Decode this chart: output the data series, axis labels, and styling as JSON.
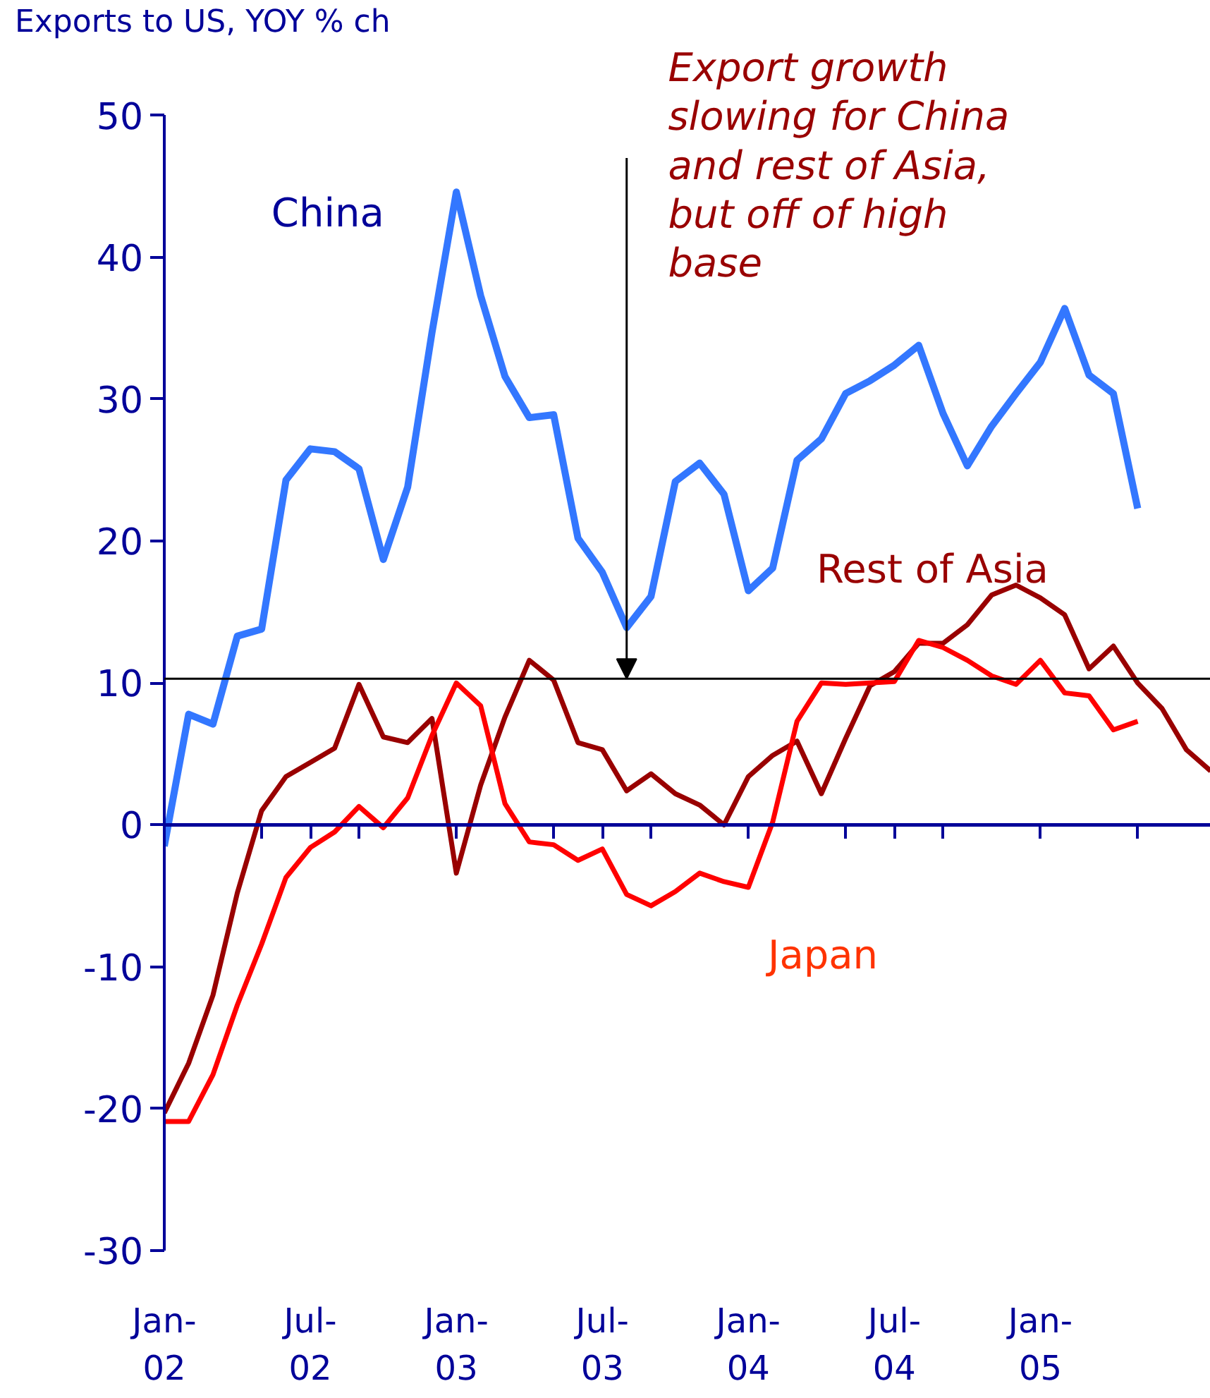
{
  "chart_data": {
    "type": "line",
    "ylabel": "Exports to US, YOY % ch",
    "x": [
      "2002-01",
      "2002-02",
      "2002-03",
      "2002-04",
      "2002-05",
      "2002-06",
      "2002-07",
      "2002-08",
      "2002-09",
      "2002-10",
      "2002-11",
      "2002-12",
      "2003-01",
      "2003-02",
      "2003-03",
      "2003-04",
      "2003-05",
      "2003-06",
      "2003-07",
      "2003-08",
      "2003-09",
      "2003-10",
      "2003-11",
      "2003-12",
      "2004-01",
      "2004-02",
      "2004-03",
      "2004-04",
      "2004-05",
      "2004-06",
      "2004-07",
      "2004-08",
      "2004-09",
      "2004-10",
      "2004-11",
      "2004-12",
      "2005-01",
      "2005-02",
      "2005-03",
      "2005-04",
      "2005-05",
      "2005-06",
      "2005-07",
      "2005-08"
    ],
    "series": [
      {
        "name": "China",
        "color": "#3377ff",
        "values": [
          -1.5,
          7.8,
          7.1,
          13.3,
          13.8,
          24.3,
          26.5,
          26.3,
          25.1,
          18.7,
          23.8,
          34.7,
          44.6,
          37.3,
          31.6,
          28.7,
          28.9,
          20.2,
          17.8,
          13.9,
          16.1,
          24.2,
          25.5,
          23.3,
          16.5,
          18.1,
          25.7,
          27.2,
          30.4,
          31.3,
          32.4,
          33.8,
          29.0,
          25.3,
          28.1,
          30.4,
          32.6,
          36.4,
          31.7,
          30.4,
          22.3,
          null,
          null,
          null
        ]
      },
      {
        "name": "Rest of Asia",
        "color": "#990000",
        "values": [
          -20.3,
          -16.8,
          -12.0,
          -4.8,
          1.0,
          3.4,
          4.4,
          5.4,
          9.9,
          6.2,
          5.8,
          7.5,
          -3.4,
          2.8,
          7.6,
          11.6,
          10.2,
          5.8,
          5.3,
          2.4,
          3.6,
          2.2,
          1.4,
          0.0,
          3.4,
          4.9,
          5.9,
          2.2,
          6.1,
          9.8,
          10.8,
          12.8,
          12.8,
          14.1,
          16.2,
          16.9,
          16.0,
          14.8,
          11.0,
          12.6,
          10.0,
          8.2,
          5.3,
          3.8
        ]
      },
      {
        "name": "Japan",
        "color": "#ff0000",
        "values": [
          -20.9,
          -20.9,
          -17.6,
          -12.7,
          -8.4,
          -3.7,
          -1.6,
          -0.5,
          1.3,
          -0.2,
          1.9,
          6.3,
          10.0,
          8.4,
          1.5,
          -1.2,
          -1.4,
          -2.5,
          -1.7,
          -4.9,
          -5.7,
          -4.7,
          -3.4,
          -4.0,
          -4.4,
          0.2,
          7.3,
          10.0,
          9.9,
          10.0,
          10.1,
          13.0,
          12.5,
          11.6,
          10.5,
          9.9,
          11.6,
          9.3,
          9.1,
          6.7,
          7.3,
          null,
          null,
          null
        ]
      }
    ],
    "xlim": [
      "2002-01",
      "2005-08"
    ],
    "xticks": [
      {
        "value": "2002-01",
        "label": "Jan-\n02"
      },
      {
        "value": "2002-05",
        "label": null
      },
      {
        "value": "2002-07",
        "label": "Jul-\n02"
      },
      {
        "value": "2002-09",
        "label": null
      },
      {
        "value": "2003-01",
        "label": "Jan-\n03"
      },
      {
        "value": "2003-05",
        "label": null
      },
      {
        "value": "2003-07",
        "label": "Jul-\n03"
      },
      {
        "value": "2003-09",
        "label": null
      },
      {
        "value": "2004-01",
        "label": "Jan-\n04"
      },
      {
        "value": "2004-05",
        "label": null
      },
      {
        "value": "2004-07",
        "label": "Jul-\n04"
      },
      {
        "value": "2004-09",
        "label": null
      },
      {
        "value": "2005-01",
        "label": "Jan-\n05"
      },
      {
        "value": "2005-05",
        "label": null
      }
    ],
    "ylim": [
      -30,
      50
    ],
    "yticks": [
      -30,
      -20,
      -10,
      0,
      10,
      20,
      30,
      40,
      50
    ],
    "ref_lines": [
      {
        "axis": "y",
        "value": 10.3,
        "color": "#000000"
      },
      {
        "axis": "y",
        "value": 0,
        "color": "#000099"
      }
    ],
    "annotations": [
      {
        "text": "Export growth\nslowing for China\nand rest of Asia,\nbut off of high\nbase",
        "x": "2003-08",
        "y": 10.3
      }
    ],
    "grid": false,
    "legend": false,
    "marker": "none",
    "line_style": "solid"
  }
}
